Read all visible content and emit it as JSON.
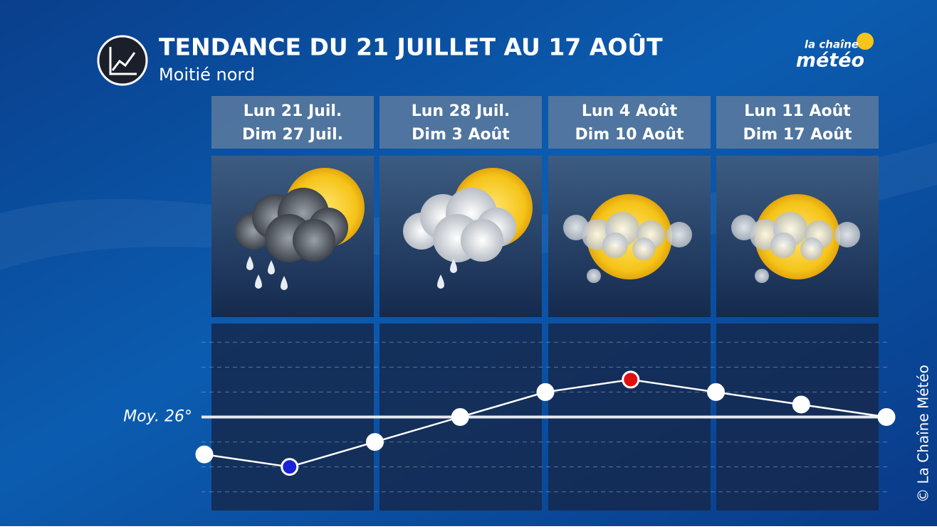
{
  "header": {
    "title": "TENDANCE DU 21 JUILLET AU 17 AOÛT",
    "subtitle": "Moitié nord",
    "logo_top": "la chaîne",
    "logo_bottom": "météo"
  },
  "periods": [
    {
      "start": "Lun 21 Juil.",
      "end": "Dim 27 Juil."
    },
    {
      "start": "Lun 28 Juil.",
      "end": "Dim 3 Août"
    },
    {
      "start": "Lun 4 Août",
      "end": "Dim 10 Août"
    },
    {
      "start": "Lun 11 Août",
      "end": "Dim 17 Août"
    }
  ],
  "chart_data": {
    "type": "line",
    "categories": [
      null,
      null,
      null,
      null,
      null,
      null,
      null,
      null,
      null
    ],
    "values": [
      24.5,
      24,
      25,
      26,
      27,
      27.5,
      27,
      26.5,
      26
    ],
    "point_colors": [
      "#ffffff",
      "#1a22d8",
      "#ffffff",
      "#ffffff",
      "#ffffff",
      "#e01010",
      "#ffffff",
      "#ffffff",
      "#ffffff"
    ],
    "color": "#ffffff",
    "ylim": [
      22.25,
      29.75
    ],
    "gridlines": [
      23,
      24,
      25,
      27,
      28,
      29
    ],
    "reference_line": {
      "value": 26,
      "label": "Moy. 26°"
    }
  },
  "copyright": "© La Chaîne Météo"
}
